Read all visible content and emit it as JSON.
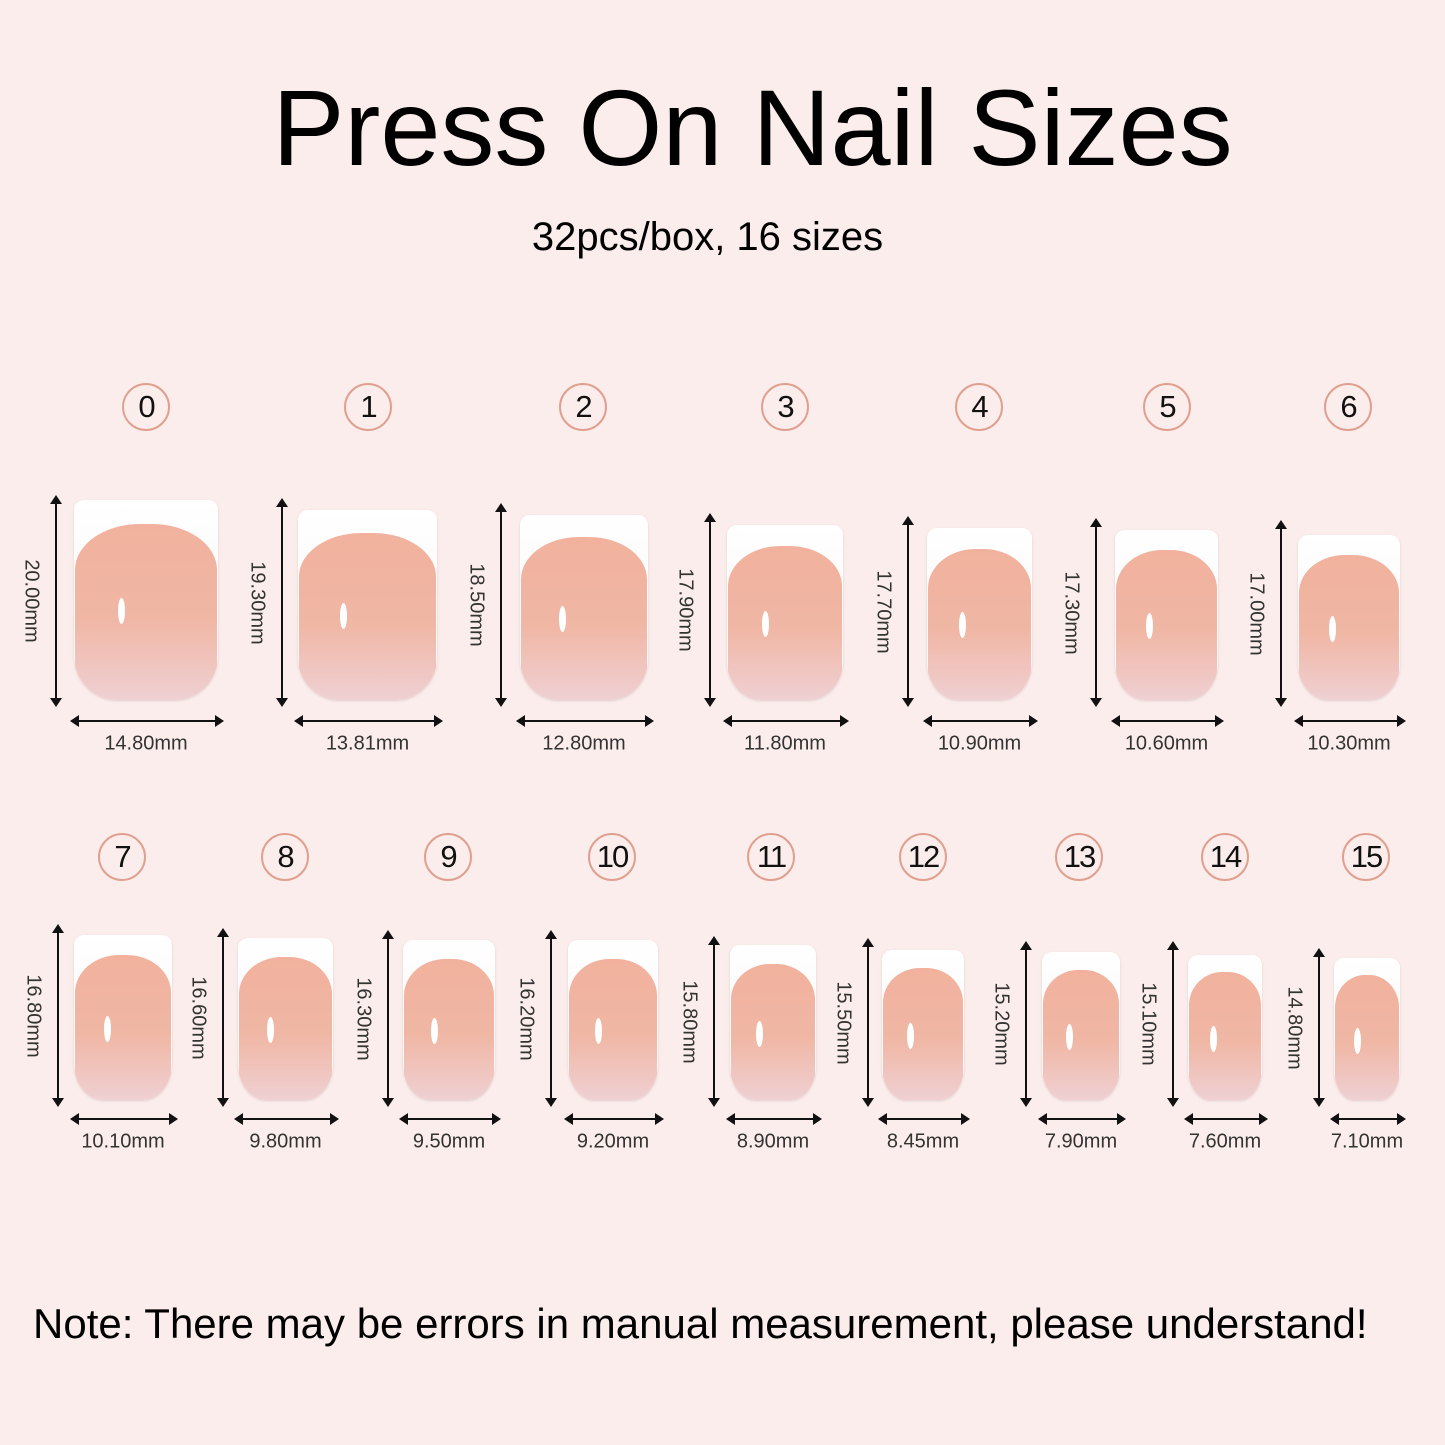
{
  "title": "Press On Nail Sizes",
  "subtitle": "32pcs/box, 16 sizes",
  "note": "Note: There may be errors in manual measurement, please understand!",
  "colors": {
    "background": "#fbedeb",
    "nail_pink": "#f1b19d",
    "nail_tip": "#ffffff",
    "badge_border": "#e0a090"
  },
  "sizes": [
    {
      "number": "0",
      "length": "20.00mm",
      "width": "14.80mm"
    },
    {
      "number": "1",
      "length": "19.30mm",
      "width": "13.81mm"
    },
    {
      "number": "2",
      "length": "18.50mm",
      "width": "12.80mm"
    },
    {
      "number": "3",
      "length": "17.90mm",
      "width": "11.80mm"
    },
    {
      "number": "4",
      "length": "17.70mm",
      "width": "10.90mm"
    },
    {
      "number": "5",
      "length": "17.30mm",
      "width": "10.60mm"
    },
    {
      "number": "6",
      "length": "17.00mm",
      "width": "10.30mm"
    },
    {
      "number": "7",
      "length": "16.80mm",
      "width": "10.10mm"
    },
    {
      "number": "8",
      "length": "16.60mm",
      "width": "9.80mm"
    },
    {
      "number": "9",
      "length": "16.30mm",
      "width": "9.50mm"
    },
    {
      "number": "10",
      "length": "16.20mm",
      "width": "9.20mm"
    },
    {
      "number": "11",
      "length": "15.80mm",
      "width": "8.90mm"
    },
    {
      "number": "12",
      "length": "15.50mm",
      "width": "8.45mm"
    },
    {
      "number": "13",
      "length": "15.20mm",
      "width": "7.90mm"
    },
    {
      "number": "14",
      "length": "15.10mm",
      "width": "7.60mm"
    },
    {
      "number": "15",
      "length": "14.80mm",
      "width": "7.10mm"
    }
  ]
}
